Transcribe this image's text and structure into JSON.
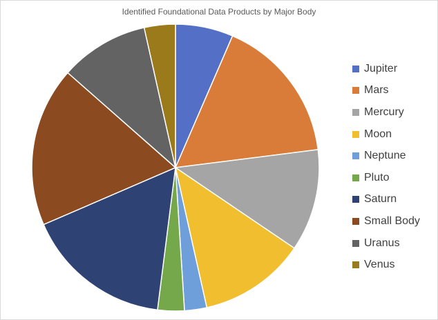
{
  "chart_data": {
    "type": "pie",
    "title": "Identified Foundational Data Products by Major Body",
    "start_angle_deg": 0,
    "direction": "clockwise",
    "legend_position": "right",
    "slices": [
      {
        "label": "Jupiter",
        "value": 6.5,
        "color": "#5470C6"
      },
      {
        "label": "Mars",
        "value": 16.5,
        "color": "#D97C3A"
      },
      {
        "label": "Mercury",
        "value": 11.5,
        "color": "#A5A5A5"
      },
      {
        "label": "Moon",
        "value": 12.0,
        "color": "#F0BE2E"
      },
      {
        "label": "Neptune",
        "value": 2.5,
        "color": "#6E9FDB"
      },
      {
        "label": "Pluto",
        "value": 3.0,
        "color": "#74A84A"
      },
      {
        "label": "Saturn",
        "value": 16.5,
        "color": "#2E4374"
      },
      {
        "label": "Small Body",
        "value": 18.0,
        "color": "#8B4A1F"
      },
      {
        "label": "Uranus",
        "value": 10.0,
        "color": "#636363"
      },
      {
        "label": "Venus",
        "value": 3.5,
        "color": "#9A7A1A"
      }
    ]
  }
}
